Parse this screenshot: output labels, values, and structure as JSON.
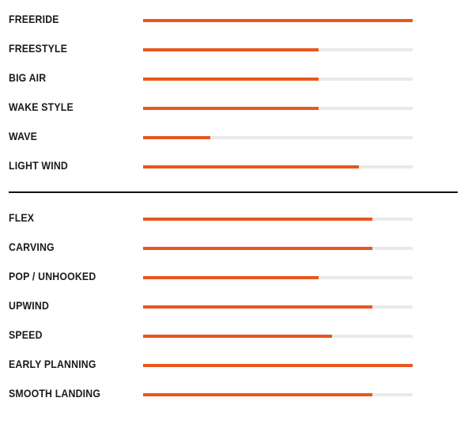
{
  "colors": {
    "accent": "#e8561e",
    "track": "#e9e9e9",
    "text": "#1a1a1a",
    "divider": "#111111"
  },
  "riding_styles": [
    {
      "label": "FREERIDE",
      "level": 1.0
    },
    {
      "label": "FREESTYLE",
      "level": 0.65
    },
    {
      "label": "BIG AIR",
      "level": 0.65
    },
    {
      "label": "WAKE STYLE",
      "level": 0.65
    },
    {
      "label": "WAVE",
      "level": 0.25
    },
    {
      "label": "LIGHT WIND",
      "level": 0.8
    }
  ],
  "characteristics": [
    {
      "label": "FLEX",
      "level": 0.85
    },
    {
      "label": "CARVING",
      "level": 0.85
    },
    {
      "label": "POP / UNHOOKED",
      "level": 0.65
    },
    {
      "label": "UPWIND",
      "level": 0.85
    },
    {
      "label": "SPEED",
      "level": 0.7
    },
    {
      "label": "EARLY PLANNING",
      "level": 1.0
    },
    {
      "label": "SMOOTH LANDING",
      "level": 0.85
    }
  ]
}
